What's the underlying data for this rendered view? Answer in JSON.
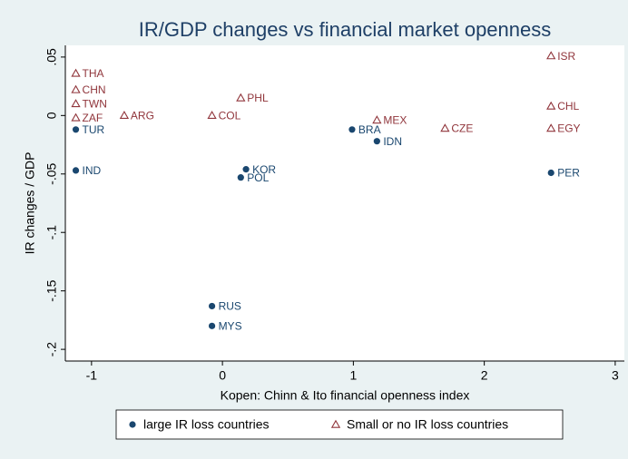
{
  "chart_data": {
    "type": "scatter",
    "title": "IR/GDP changes vs financial market openness",
    "x_label": "Kopen: Chinn & Ito financial openness index",
    "y_label": "IR changes / GDP",
    "xlim": [
      -1.2,
      3.07
    ],
    "ylim": [
      -0.21,
      0.06
    ],
    "xticks": [
      -1,
      0,
      1,
      2,
      3
    ],
    "yticks": [
      {
        "value": 0.05,
        "label": ".05"
      },
      0,
      {
        "value": -0.05,
        "label": "-.05"
      },
      {
        "value": -0.1,
        "label": "-.1"
      },
      {
        "value": -0.15,
        "label": "-.15"
      },
      {
        "value": -0.2,
        "label": "-.2"
      }
    ],
    "legend": "bottom",
    "series": [
      {
        "name": "large IR loss countries",
        "color": "#1a476f",
        "marker": "circle",
        "labels": [
          "TUR",
          "IND",
          "KOR",
          "POL",
          "RUS",
          "MYS",
          "BRA",
          "IDN",
          "PER"
        ],
        "x": [
          -1.12,
          -1.12,
          0.18,
          0.14,
          -0.08,
          -0.08,
          0.99,
          1.18,
          2.51
        ],
        "values": [
          -0.012,
          -0.047,
          -0.046,
          -0.053,
          -0.163,
          -0.18,
          -0.012,
          -0.022,
          -0.049
        ]
      },
      {
        "name": "Small or no IR loss countries",
        "color": "#90353b",
        "marker": "triangle",
        "labels": [
          "THA",
          "CHN",
          "TWN",
          "ZAF",
          "ARG",
          "COL",
          "PHL",
          "MEX",
          "CZE",
          "ISR",
          "CHL",
          "EGY"
        ],
        "x": [
          -1.12,
          -1.12,
          -1.12,
          -1.12,
          -0.75,
          -0.08,
          0.14,
          1.18,
          1.7,
          2.51,
          2.51,
          2.51
        ],
        "values": [
          0.036,
          0.022,
          0.01,
          -0.002,
          0.0,
          0.0,
          0.015,
          -0.004,
          -0.011,
          0.051,
          0.008,
          -0.011
        ]
      }
    ]
  }
}
